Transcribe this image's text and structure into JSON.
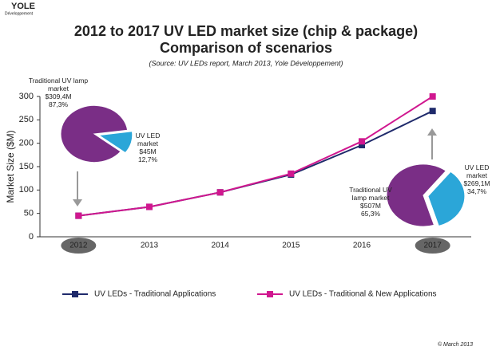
{
  "logo": "YOLE",
  "logo_sub": "Développement",
  "copyright": "© March 2013",
  "chart_data": [
    {
      "type": "line",
      "title": "2012 to 2017 UV LED market size (chip & package)",
      "subtitle": "Comparison of scenarios",
      "source": "(Source: UV LEDs report, March 2013, Yole Développement)",
      "y_label": "Market Size ($M)",
      "categories": [
        "2012",
        "2013",
        "2014",
        "2015",
        "2016",
        "2017"
      ],
      "highlight_indices": [
        0,
        5
      ],
      "series": [
        {
          "name": "UV LEDs - Traditional Applications",
          "color": "#1f2a6b",
          "values": [
            45,
            64,
            95,
            133,
            196,
            269
          ]
        },
        {
          "name": "UV LEDs - Traditional & New Applications",
          "color": "#d0178f",
          "values": [
            45,
            64,
            95,
            135,
            204,
            300
          ]
        }
      ],
      "ylim": [
        0,
        300
      ],
      "yticks": [
        0,
        50,
        100,
        150,
        200,
        250,
        300
      ],
      "grid": false,
      "legend": "bottom"
    },
    {
      "type": "pie",
      "categories": [
        "Traditional UV lamp market",
        "UV LED market"
      ],
      "values": [
        87.3,
        12.7
      ],
      "value_labels": [
        "87,3%",
        "12,7%"
      ],
      "amount_labels": [
        "$309,4M",
        "$45M"
      ],
      "colors": [
        "#7a2e86",
        "#2ba6d8"
      ]
    },
    {
      "type": "pie",
      "categories": [
        "Traditional UV lamp market",
        "UV LED market"
      ],
      "values": [
        65.3,
        34.7
      ],
      "value_labels": [
        "65,3%",
        "34,7%"
      ],
      "amount_labels": [
        "$507M",
        "$269,1M"
      ],
      "colors": [
        "#7a2e86",
        "#2ba6d8"
      ]
    }
  ]
}
